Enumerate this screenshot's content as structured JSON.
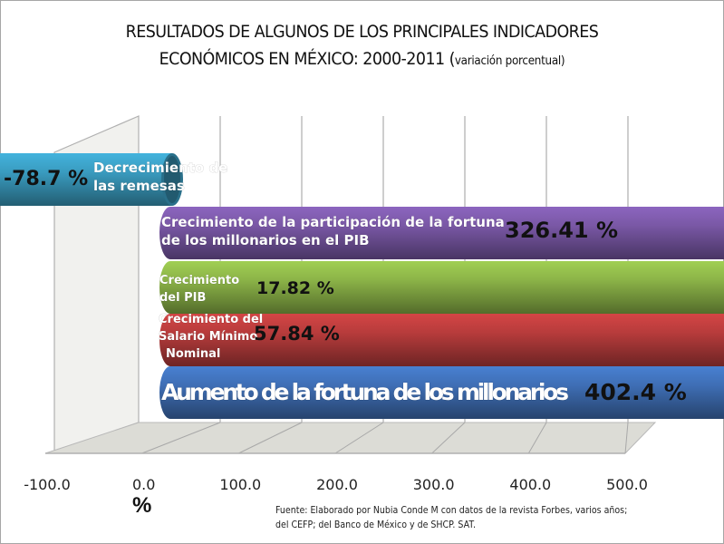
{
  "chart_data": {
    "type": "bar",
    "orientation": "horizontal",
    "style": "3d-cylinder",
    "title_line1": "RESULTADOS DE ALGUNOS DE LOS PRINCIPALES INDICADORES",
    "title_line2_main": "ECONÓMICOS EN MÉXICO: 2000-2011 (",
    "title_line2_small": "variación porcentual)",
    "xlabel": "%",
    "ylabel": "",
    "xlim": [
      -100,
      500
    ],
    "xticks": [
      "-100.0",
      "0.0",
      "100.0",
      "200.0",
      "300.0",
      "400.0",
      "500.0"
    ],
    "xtick_values": [
      -100,
      0,
      100,
      200,
      300,
      400,
      500
    ],
    "grid": true,
    "categories": [
      "Decrecimiento de las remesas",
      "Crecimiento de la participación de la fortuna de los millonarios en el PIB",
      "Crecimiento del PIB",
      "Crecimiento del Salario Mínimo Nominal",
      "Aumento de la fortuna de los millonarios"
    ],
    "bar_label_lines": [
      [
        "Decrecimiento de",
        "las remesas"
      ],
      [
        "Crecimiento de la participación de la fortuna",
        "de los millonarios en el PIB"
      ],
      [
        "Crecimiento",
        "del PIB"
      ],
      [
        "Crecimiento del",
        "Salario Mínimo",
        "Nominal"
      ],
      [
        "Aumento de la fortuna de los millonarios"
      ]
    ],
    "values": [
      -78.7,
      326.41,
      17.82,
      57.84,
      402.4
    ],
    "value_labels": [
      "-78.7 %",
      "326.41 %",
      "17.82 %",
      "57.84 %",
      "402.4 %"
    ],
    "colors": [
      "#3a9cc0",
      "#7a58a6",
      "#8cb448",
      "#b83c3c",
      "#3f6fb6"
    ],
    "source_line1": "Fuente: Elaborado por Nubia Conde M con datos de la revista Forbes, varios años;",
    "source_line2": " del CEFP; del Banco de México y de  SHCP. SAT."
  }
}
